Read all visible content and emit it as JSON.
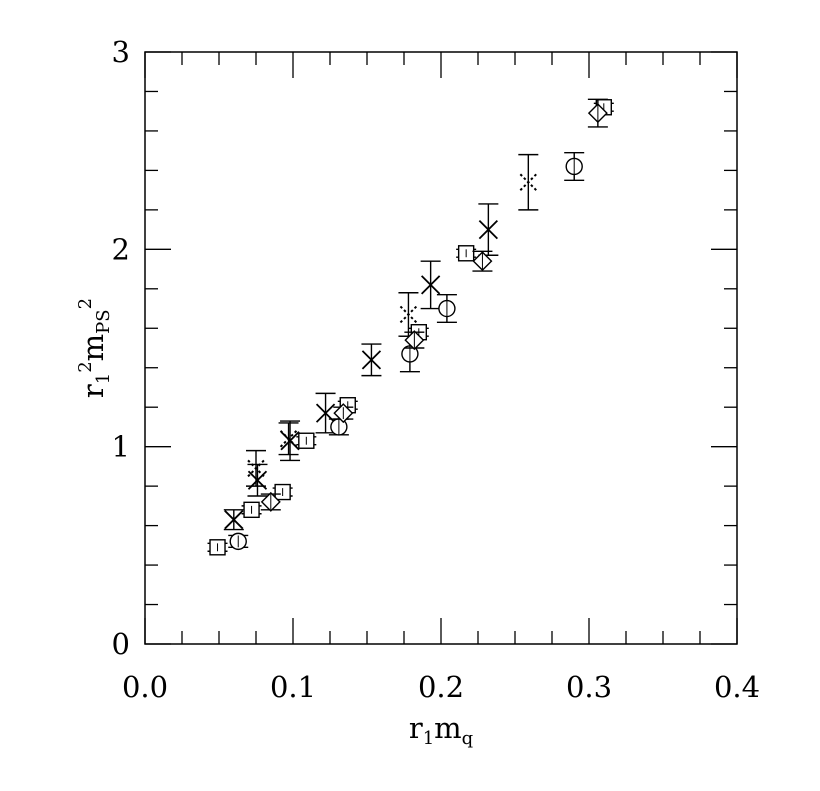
{
  "chart_data": {
    "type": "scatter",
    "title": "",
    "xlabel": {
      "base": "r",
      "sub": "1",
      "rest": "m",
      "rest_sub": "q"
    },
    "ylabel": {
      "base": "r",
      "sub": "1",
      "sup": "2",
      "rest": "m",
      "rest_sub": "PS",
      "rest_sup": "2"
    },
    "xlim": [
      0.0,
      0.4
    ],
    "ylim": [
      0,
      3
    ],
    "xticks": [
      "0.0",
      "0.1",
      "0.2",
      "0.3",
      "0.4"
    ],
    "yticks": [
      "0",
      "1",
      "2",
      "3"
    ],
    "grid": false,
    "series": [
      {
        "marker": "cross",
        "points": [
          {
            "x": 0.06,
            "y": 0.63,
            "err": 0.05
          },
          {
            "x": 0.076,
            "y": 0.83,
            "err": 0.08
          },
          {
            "x": 0.098,
            "y": 1.03,
            "err": 0.1
          },
          {
            "x": 0.122,
            "y": 1.17,
            "err": 0.1
          },
          {
            "x": 0.153,
            "y": 1.44,
            "err": 0.08
          },
          {
            "x": 0.193,
            "y": 1.82,
            "err": 0.12
          },
          {
            "x": 0.232,
            "y": 2.1,
            "err": 0.13
          }
        ]
      },
      {
        "marker": "dotted-cross",
        "points": [
          {
            "x": 0.075,
            "y": 0.89,
            "err": 0.09
          },
          {
            "x": 0.097,
            "y": 1.04,
            "err": 0.08
          },
          {
            "x": 0.178,
            "y": 1.67,
            "err": 0.11
          },
          {
            "x": 0.259,
            "y": 2.34,
            "err": 0.14
          }
        ]
      },
      {
        "marker": "circle",
        "points": [
          {
            "x": 0.063,
            "y": 0.52,
            "err": 0.03
          },
          {
            "x": 0.131,
            "y": 1.1,
            "err": 0.04
          },
          {
            "x": 0.179,
            "y": 1.47,
            "err": 0.09
          },
          {
            "x": 0.204,
            "y": 1.7,
            "err": 0.07
          },
          {
            "x": 0.29,
            "y": 2.42,
            "err": 0.07
          }
        ]
      },
      {
        "marker": "square",
        "points": [
          {
            "x": 0.049,
            "y": 0.49,
            "err": 0.02
          },
          {
            "x": 0.072,
            "y": 0.68,
            "err": 0.02
          },
          {
            "x": 0.093,
            "y": 0.77,
            "err": 0.02
          },
          {
            "x": 0.109,
            "y": 1.03,
            "err": 0.02
          },
          {
            "x": 0.137,
            "y": 1.21,
            "err": 0.02
          },
          {
            "x": 0.185,
            "y": 1.58,
            "err": 0.02
          },
          {
            "x": 0.217,
            "y": 1.98,
            "err": 0.02
          },
          {
            "x": 0.31,
            "y": 2.72,
            "err": 0.02
          }
        ]
      },
      {
        "marker": "diamond",
        "points": [
          {
            "x": 0.085,
            "y": 0.72,
            "err": 0.04
          },
          {
            "x": 0.134,
            "y": 1.17,
            "err": 0.03
          },
          {
            "x": 0.182,
            "y": 1.54,
            "err": 0.04
          },
          {
            "x": 0.228,
            "y": 1.94,
            "err": 0.05
          },
          {
            "x": 0.306,
            "y": 2.69,
            "err": 0.07
          }
        ]
      }
    ]
  }
}
